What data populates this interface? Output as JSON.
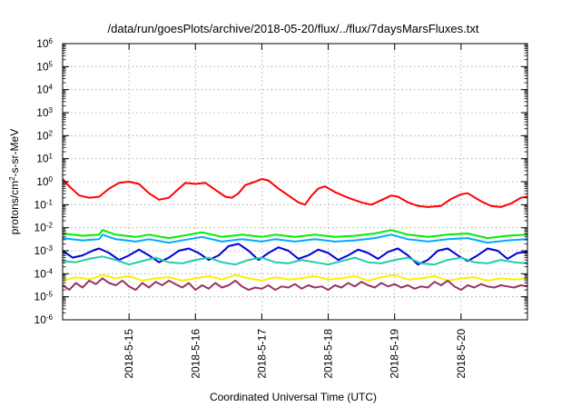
{
  "chart_data": {
    "type": "line",
    "title": "/data/run/goesPlots/archive/2018-05-20/flux/../flux/7daysMarsFluxes.txt",
    "xlabel": "Coordinated Universal Time (UTC)",
    "ylabel": {
      "pre": "protons/cm",
      "sup": "2",
      "post": "-s-sr-MeV"
    },
    "yscale": "log",
    "xlim": [
      0,
      7
    ],
    "ylim_exponent": [
      -6,
      6
    ],
    "y_ticks": [
      {
        "base": "10",
        "exp": "-6",
        "value": -6
      },
      {
        "base": "10",
        "exp": "-5",
        "value": -5
      },
      {
        "base": "10",
        "exp": "-4",
        "value": -4
      },
      {
        "base": "10",
        "exp": "-3",
        "value": -3
      },
      {
        "base": "10",
        "exp": "-2",
        "value": -2
      },
      {
        "base": "10",
        "exp": "-1",
        "value": -1
      },
      {
        "base": "10",
        "exp": "0",
        "value": 0
      },
      {
        "base": "10",
        "exp": "1",
        "value": 1
      },
      {
        "base": "10",
        "exp": "2",
        "value": 2
      },
      {
        "base": "10",
        "exp": "3",
        "value": 3
      },
      {
        "base": "10",
        "exp": "4",
        "value": 4
      },
      {
        "base": "10",
        "exp": "5",
        "value": 5
      },
      {
        "base": "10",
        "exp": "6",
        "value": 6
      }
    ],
    "x_ticks": [
      {
        "label": "2018-5-15",
        "value": 1
      },
      {
        "label": "2018-5-16",
        "value": 2
      },
      {
        "label": "2018-5-17",
        "value": 3
      },
      {
        "label": "2018-5-18",
        "value": 4
      },
      {
        "label": "2018-5-19",
        "value": 5
      },
      {
        "label": "2018-5-20",
        "value": 6
      }
    ],
    "grid": true,
    "series": [
      {
        "color": "#ff0000",
        "points": [
          [
            0,
            0.12
          ],
          [
            0.1,
            -0.2
          ],
          [
            0.25,
            -0.6
          ],
          [
            0.4,
            -0.7
          ],
          [
            0.55,
            -0.65
          ],
          [
            0.7,
            -0.3
          ],
          [
            0.85,
            -0.05
          ],
          [
            1,
            0
          ],
          [
            1.15,
            -0.1
          ],
          [
            1.3,
            -0.5
          ],
          [
            1.45,
            -0.78
          ],
          [
            1.6,
            -0.7
          ],
          [
            1.75,
            -0.3
          ],
          [
            1.85,
            -0.05
          ],
          [
            2,
            -0.1
          ],
          [
            2.15,
            -0.05
          ],
          [
            2.3,
            -0.35
          ],
          [
            2.45,
            -0.65
          ],
          [
            2.55,
            -0.7
          ],
          [
            2.65,
            -0.5
          ],
          [
            2.75,
            -0.15
          ],
          [
            2.9,
            0
          ],
          [
            3,
            0.12
          ],
          [
            3.1,
            0.05
          ],
          [
            3.25,
            -0.3
          ],
          [
            3.4,
            -0.6
          ],
          [
            3.55,
            -0.9
          ],
          [
            3.65,
            -1.0
          ],
          [
            3.75,
            -0.6
          ],
          [
            3.85,
            -0.3
          ],
          [
            3.95,
            -0.2
          ],
          [
            4.1,
            -0.45
          ],
          [
            4.3,
            -0.7
          ],
          [
            4.5,
            -0.9
          ],
          [
            4.65,
            -1.0
          ],
          [
            4.8,
            -0.8
          ],
          [
            4.95,
            -0.6
          ],
          [
            5.05,
            -0.65
          ],
          [
            5.2,
            -0.9
          ],
          [
            5.35,
            -1.05
          ],
          [
            5.5,
            -1.1
          ],
          [
            5.7,
            -1.05
          ],
          [
            5.85,
            -0.75
          ],
          [
            6,
            -0.55
          ],
          [
            6.1,
            -0.5
          ],
          [
            6.3,
            -0.85
          ],
          [
            6.45,
            -1.05
          ],
          [
            6.6,
            -1.1
          ],
          [
            6.75,
            -0.95
          ],
          [
            6.9,
            -0.7
          ],
          [
            7,
            -0.65
          ]
        ]
      },
      {
        "color": "#00ee00",
        "points": [
          [
            0,
            -2.25
          ],
          [
            0.3,
            -2.35
          ],
          [
            0.55,
            -2.3
          ],
          [
            0.6,
            -2.1
          ],
          [
            0.8,
            -2.3
          ],
          [
            1.1,
            -2.4
          ],
          [
            1.3,
            -2.3
          ],
          [
            1.6,
            -2.45
          ],
          [
            1.9,
            -2.3
          ],
          [
            2.1,
            -2.2
          ],
          [
            2.4,
            -2.4
          ],
          [
            2.7,
            -2.3
          ],
          [
            3.0,
            -2.4
          ],
          [
            3.2,
            -2.3
          ],
          [
            3.5,
            -2.4
          ],
          [
            3.8,
            -2.3
          ],
          [
            4.1,
            -2.4
          ],
          [
            4.4,
            -2.35
          ],
          [
            4.7,
            -2.25
          ],
          [
            4.95,
            -2.1
          ],
          [
            5.2,
            -2.3
          ],
          [
            5.5,
            -2.4
          ],
          [
            5.8,
            -2.3
          ],
          [
            6.1,
            -2.25
          ],
          [
            6.4,
            -2.45
          ],
          [
            6.7,
            -2.35
          ],
          [
            7,
            -2.3
          ]
        ]
      },
      {
        "color": "#00aaff",
        "points": [
          [
            0,
            -2.45
          ],
          [
            0.3,
            -2.55
          ],
          [
            0.55,
            -2.5
          ],
          [
            0.6,
            -2.3
          ],
          [
            0.8,
            -2.5
          ],
          [
            1.1,
            -2.6
          ],
          [
            1.3,
            -2.5
          ],
          [
            1.6,
            -2.65
          ],
          [
            1.9,
            -2.5
          ],
          [
            2.1,
            -2.4
          ],
          [
            2.4,
            -2.6
          ],
          [
            2.7,
            -2.5
          ],
          [
            3.0,
            -2.6
          ],
          [
            3.2,
            -2.5
          ],
          [
            3.5,
            -2.6
          ],
          [
            3.8,
            -2.5
          ],
          [
            4.1,
            -2.6
          ],
          [
            4.4,
            -2.55
          ],
          [
            4.7,
            -2.45
          ],
          [
            4.95,
            -2.3
          ],
          [
            5.2,
            -2.5
          ],
          [
            5.5,
            -2.6
          ],
          [
            5.8,
            -2.5
          ],
          [
            6.1,
            -2.45
          ],
          [
            6.4,
            -2.65
          ],
          [
            6.7,
            -2.55
          ],
          [
            7,
            -2.5
          ]
        ]
      },
      {
        "color": "#0000dd",
        "points": [
          [
            0,
            -3.0
          ],
          [
            0.15,
            -3.3
          ],
          [
            0.3,
            -3.2
          ],
          [
            0.45,
            -3.0
          ],
          [
            0.55,
            -2.9
          ],
          [
            0.7,
            -3.1
          ],
          [
            0.85,
            -3.4
          ],
          [
            1.0,
            -3.2
          ],
          [
            1.15,
            -2.95
          ],
          [
            1.3,
            -3.2
          ],
          [
            1.45,
            -3.5
          ],
          [
            1.6,
            -3.3
          ],
          [
            1.75,
            -3.0
          ],
          [
            1.9,
            -2.9
          ],
          [
            2.05,
            -3.1
          ],
          [
            2.2,
            -3.4
          ],
          [
            2.35,
            -3.2
          ],
          [
            2.5,
            -2.8
          ],
          [
            2.65,
            -2.7
          ],
          [
            2.8,
            -3.0
          ],
          [
            2.95,
            -3.4
          ],
          [
            3.1,
            -3.1
          ],
          [
            3.25,
            -2.85
          ],
          [
            3.4,
            -3.0
          ],
          [
            3.55,
            -3.35
          ],
          [
            3.7,
            -3.2
          ],
          [
            3.85,
            -2.95
          ],
          [
            4.0,
            -3.1
          ],
          [
            4.15,
            -3.4
          ],
          [
            4.3,
            -3.2
          ],
          [
            4.45,
            -2.95
          ],
          [
            4.6,
            -3.1
          ],
          [
            4.75,
            -3.35
          ],
          [
            4.9,
            -3.05
          ],
          [
            5.05,
            -2.9
          ],
          [
            5.2,
            -3.2
          ],
          [
            5.35,
            -3.6
          ],
          [
            5.5,
            -3.4
          ],
          [
            5.65,
            -3.0
          ],
          [
            5.8,
            -2.9
          ],
          [
            5.95,
            -3.2
          ],
          [
            6.1,
            -3.45
          ],
          [
            6.25,
            -3.2
          ],
          [
            6.4,
            -2.9
          ],
          [
            6.55,
            -3.0
          ],
          [
            6.7,
            -3.35
          ],
          [
            6.85,
            -3.1
          ],
          [
            7,
            -3.05
          ]
        ]
      },
      {
        "color": "#22ccaa",
        "points": [
          [
            0,
            -3.45
          ],
          [
            0.2,
            -3.5
          ],
          [
            0.4,
            -3.35
          ],
          [
            0.6,
            -3.25
          ],
          [
            0.8,
            -3.4
          ],
          [
            1.0,
            -3.6
          ],
          [
            1.2,
            -3.45
          ],
          [
            1.4,
            -3.3
          ],
          [
            1.6,
            -3.5
          ],
          [
            1.8,
            -3.55
          ],
          [
            2.0,
            -3.4
          ],
          [
            2.2,
            -3.3
          ],
          [
            2.4,
            -3.5
          ],
          [
            2.6,
            -3.6
          ],
          [
            2.8,
            -3.4
          ],
          [
            3.0,
            -3.3
          ],
          [
            3.2,
            -3.5
          ],
          [
            3.4,
            -3.55
          ],
          [
            3.6,
            -3.4
          ],
          [
            3.8,
            -3.5
          ],
          [
            4.0,
            -3.6
          ],
          [
            4.2,
            -3.45
          ],
          [
            4.4,
            -3.3
          ],
          [
            4.6,
            -3.5
          ],
          [
            4.8,
            -3.55
          ],
          [
            5.0,
            -3.4
          ],
          [
            5.2,
            -3.3
          ],
          [
            5.4,
            -3.55
          ],
          [
            5.6,
            -3.6
          ],
          [
            5.8,
            -3.4
          ],
          [
            6.0,
            -3.3
          ],
          [
            6.2,
            -3.5
          ],
          [
            6.4,
            -3.55
          ],
          [
            6.6,
            -3.4
          ],
          [
            6.8,
            -3.5
          ],
          [
            7,
            -3.55
          ]
        ]
      },
      {
        "color": "#ffee00",
        "points": [
          [
            0,
            -4.3
          ],
          [
            0.2,
            -4.15
          ],
          [
            0.4,
            -4.25
          ],
          [
            0.6,
            -4.05
          ],
          [
            0.8,
            -4.2
          ],
          [
            1.0,
            -4.1
          ],
          [
            1.2,
            -4.3
          ],
          [
            1.4,
            -4.2
          ],
          [
            1.6,
            -4.15
          ],
          [
            1.8,
            -4.3
          ],
          [
            2.0,
            -4.2
          ],
          [
            2.2,
            -4.1
          ],
          [
            2.4,
            -4.25
          ],
          [
            2.6,
            -4.05
          ],
          [
            2.8,
            -4.2
          ],
          [
            3.0,
            -4.3
          ],
          [
            3.2,
            -4.15
          ],
          [
            3.4,
            -4.25
          ],
          [
            3.6,
            -4.2
          ],
          [
            3.8,
            -4.1
          ],
          [
            4.0,
            -4.25
          ],
          [
            4.2,
            -4.2
          ],
          [
            4.4,
            -4.1
          ],
          [
            4.6,
            -4.3
          ],
          [
            4.8,
            -4.15
          ],
          [
            5.0,
            -4.05
          ],
          [
            5.2,
            -4.25
          ],
          [
            5.4,
            -4.2
          ],
          [
            5.6,
            -4.1
          ],
          [
            5.8,
            -4.3
          ],
          [
            6.0,
            -4.2
          ],
          [
            6.2,
            -4.15
          ],
          [
            6.4,
            -4.3
          ],
          [
            6.6,
            -4.2
          ],
          [
            6.8,
            -4.25
          ],
          [
            7,
            -4.2
          ]
        ]
      },
      {
        "color": "#993366",
        "points": [
          [
            0,
            -4.5
          ],
          [
            0.1,
            -4.7
          ],
          [
            0.2,
            -4.4
          ],
          [
            0.3,
            -4.6
          ],
          [
            0.4,
            -4.3
          ],
          [
            0.5,
            -4.45
          ],
          [
            0.6,
            -4.2
          ],
          [
            0.7,
            -4.4
          ],
          [
            0.8,
            -4.5
          ],
          [
            0.9,
            -4.3
          ],
          [
            1.0,
            -4.55
          ],
          [
            1.1,
            -4.7
          ],
          [
            1.2,
            -4.4
          ],
          [
            1.3,
            -4.6
          ],
          [
            1.4,
            -4.35
          ],
          [
            1.5,
            -4.5
          ],
          [
            1.6,
            -4.3
          ],
          [
            1.7,
            -4.45
          ],
          [
            1.8,
            -4.6
          ],
          [
            1.9,
            -4.4
          ],
          [
            2.0,
            -4.7
          ],
          [
            2.1,
            -4.5
          ],
          [
            2.2,
            -4.65
          ],
          [
            2.3,
            -4.4
          ],
          [
            2.4,
            -4.6
          ],
          [
            2.5,
            -4.5
          ],
          [
            2.6,
            -4.3
          ],
          [
            2.7,
            -4.55
          ],
          [
            2.8,
            -4.7
          ],
          [
            2.9,
            -4.6
          ],
          [
            3.0,
            -4.65
          ],
          [
            3.1,
            -4.5
          ],
          [
            3.2,
            -4.7
          ],
          [
            3.3,
            -4.55
          ],
          [
            3.4,
            -4.6
          ],
          [
            3.5,
            -4.45
          ],
          [
            3.6,
            -4.65
          ],
          [
            3.7,
            -4.5
          ],
          [
            3.8,
            -4.6
          ],
          [
            3.9,
            -4.55
          ],
          [
            4.0,
            -4.7
          ],
          [
            4.1,
            -4.5
          ],
          [
            4.2,
            -4.6
          ],
          [
            4.3,
            -4.4
          ],
          [
            4.4,
            -4.55
          ],
          [
            4.5,
            -4.35
          ],
          [
            4.6,
            -4.5
          ],
          [
            4.7,
            -4.6
          ],
          [
            4.8,
            -4.4
          ],
          [
            4.9,
            -4.55
          ],
          [
            5.0,
            -4.45
          ],
          [
            5.1,
            -4.6
          ],
          [
            5.2,
            -4.5
          ],
          [
            5.3,
            -4.65
          ],
          [
            5.4,
            -4.55
          ],
          [
            5.5,
            -4.6
          ],
          [
            5.6,
            -4.35
          ],
          [
            5.7,
            -4.5
          ],
          [
            5.8,
            -4.3
          ],
          [
            5.9,
            -4.55
          ],
          [
            6.0,
            -4.7
          ],
          [
            6.1,
            -4.5
          ],
          [
            6.2,
            -4.6
          ],
          [
            6.3,
            -4.45
          ],
          [
            6.4,
            -4.55
          ],
          [
            6.5,
            -4.6
          ],
          [
            6.6,
            -4.5
          ],
          [
            6.7,
            -4.55
          ],
          [
            6.8,
            -4.6
          ],
          [
            6.9,
            -4.5
          ],
          [
            7,
            -4.55
          ]
        ]
      }
    ]
  }
}
